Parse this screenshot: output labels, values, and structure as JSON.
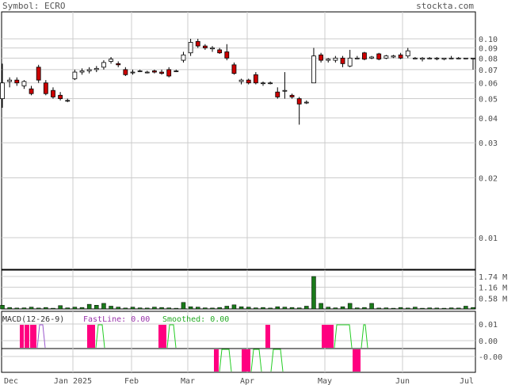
{
  "header": {
    "symbol_label": "Symbol: ECRO",
    "site": "stockta.com"
  },
  "chart_data": {
    "type": "candlestick",
    "x_ticks": [
      "Dec",
      "Jan 2025",
      "Feb",
      "Mar",
      "Apr",
      "May",
      "Jun",
      "Jul"
    ],
    "price_axis": {
      "scale": "log",
      "ticks": [
        "0.10",
        "0.09",
        "0.08",
        "0.07",
        "0.06",
        "0.05",
        "0.04",
        "0.03",
        "0.02",
        "0.01"
      ]
    },
    "volume_axis": {
      "ticks": [
        "1.74 M",
        "1.16 M",
        "0.58 M"
      ]
    },
    "macd": {
      "label": "MACD(12-26-9)",
      "fastline": "FastLine: 0.00",
      "smoothed": "Smoothed: 0.00",
      "ticks": [
        "0.01",
        "0.00",
        "-0.00"
      ]
    },
    "colors": {
      "up": "#ffffff",
      "down": "#cc0000",
      "volume": "#1a7a1a",
      "macd_fast": "#ff0080",
      "macd_smooth": "#22cc22",
      "macd_mixed": "#9955cc"
    },
    "candles": [
      {
        "o": 0.05,
        "h": 0.075,
        "l": 0.045,
        "c": 0.06
      },
      {
        "o": 0.061,
        "h": 0.064,
        "l": 0.057,
        "c": 0.062
      },
      {
        "o": 0.062,
        "h": 0.064,
        "l": 0.058,
        "c": 0.06
      },
      {
        "o": 0.058,
        "h": 0.062,
        "l": 0.056,
        "c": 0.061
      },
      {
        "o": 0.056,
        "h": 0.058,
        "l": 0.052,
        "c": 0.053
      },
      {
        "o": 0.072,
        "h": 0.074,
        "l": 0.06,
        "c": 0.062
      },
      {
        "o": 0.06,
        "h": 0.062,
        "l": 0.052,
        "c": 0.053
      },
      {
        "o": 0.055,
        "h": 0.057,
        "l": 0.05,
        "c": 0.051
      },
      {
        "o": 0.052,
        "h": 0.054,
        "l": 0.049,
        "c": 0.05
      },
      {
        "o": 0.049,
        "h": 0.05,
        "l": 0.048,
        "c": 0.049
      },
      {
        "o": 0.063,
        "h": 0.07,
        "l": 0.062,
        "c": 0.068
      },
      {
        "o": 0.068,
        "h": 0.071,
        "l": 0.066,
        "c": 0.069
      },
      {
        "o": 0.069,
        "h": 0.072,
        "l": 0.067,
        "c": 0.07
      },
      {
        "o": 0.07,
        "h": 0.073,
        "l": 0.068,
        "c": 0.071
      },
      {
        "o": 0.072,
        "h": 0.078,
        "l": 0.07,
        "c": 0.076
      },
      {
        "o": 0.077,
        "h": 0.081,
        "l": 0.075,
        "c": 0.079
      },
      {
        "o": 0.075,
        "h": 0.077,
        "l": 0.072,
        "c": 0.074
      },
      {
        "o": 0.07,
        "h": 0.072,
        "l": 0.065,
        "c": 0.066
      },
      {
        "o": 0.068,
        "h": 0.07,
        "l": 0.066,
        "c": 0.068
      },
      {
        "o": 0.069,
        "h": 0.07,
        "l": 0.068,
        "c": 0.069
      },
      {
        "o": 0.068,
        "h": 0.069,
        "l": 0.067,
        "c": 0.068
      },
      {
        "o": 0.069,
        "h": 0.07,
        "l": 0.067,
        "c": 0.068
      },
      {
        "o": 0.068,
        "h": 0.07,
        "l": 0.066,
        "c": 0.067
      },
      {
        "o": 0.07,
        "h": 0.072,
        "l": 0.064,
        "c": 0.065
      },
      {
        "o": 0.069,
        "h": 0.07,
        "l": 0.068,
        "c": 0.069
      },
      {
        "o": 0.078,
        "h": 0.086,
        "l": 0.076,
        "c": 0.083
      },
      {
        "o": 0.085,
        "h": 0.1,
        "l": 0.082,
        "c": 0.096
      },
      {
        "o": 0.097,
        "h": 0.1,
        "l": 0.09,
        "c": 0.092
      },
      {
        "o": 0.092,
        "h": 0.094,
        "l": 0.088,
        "c": 0.09
      },
      {
        "o": 0.089,
        "h": 0.092,
        "l": 0.086,
        "c": 0.09
      },
      {
        "o": 0.088,
        "h": 0.09,
        "l": 0.084,
        "c": 0.085
      },
      {
        "o": 0.086,
        "h": 0.094,
        "l": 0.078,
        "c": 0.08
      },
      {
        "o": 0.074,
        "h": 0.076,
        "l": 0.066,
        "c": 0.067
      },
      {
        "o": 0.061,
        "h": 0.063,
        "l": 0.059,
        "c": 0.062
      },
      {
        "o": 0.062,
        "h": 0.063,
        "l": 0.059,
        "c": 0.06
      },
      {
        "o": 0.066,
        "h": 0.068,
        "l": 0.059,
        "c": 0.06
      },
      {
        "o": 0.06,
        "h": 0.061,
        "l": 0.058,
        "c": 0.06
      },
      {
        "o": 0.06,
        "h": 0.061,
        "l": 0.059,
        "c": 0.06
      },
      {
        "o": 0.054,
        "h": 0.057,
        "l": 0.05,
        "c": 0.051
      },
      {
        "o": 0.055,
        "h": 0.068,
        "l": 0.05,
        "c": 0.055
      },
      {
        "o": 0.052,
        "h": 0.053,
        "l": 0.05,
        "c": 0.051
      },
      {
        "o": 0.05,
        "h": 0.051,
        "l": 0.037,
        "c": 0.047
      },
      {
        "o": 0.048,
        "h": 0.049,
        "l": 0.047,
        "c": 0.048
      },
      {
        "o": 0.06,
        "h": 0.09,
        "l": 0.06,
        "c": 0.082
      },
      {
        "o": 0.083,
        "h": 0.085,
        "l": 0.076,
        "c": 0.078
      },
      {
        "o": 0.078,
        "h": 0.08,
        "l": 0.076,
        "c": 0.079
      },
      {
        "o": 0.078,
        "h": 0.082,
        "l": 0.076,
        "c": 0.08
      },
      {
        "o": 0.08,
        "h": 0.082,
        "l": 0.072,
        "c": 0.075
      },
      {
        "o": 0.073,
        "h": 0.088,
        "l": 0.072,
        "c": 0.08
      },
      {
        "o": 0.08,
        "h": 0.082,
        "l": 0.079,
        "c": 0.08
      },
      {
        "o": 0.085,
        "h": 0.086,
        "l": 0.078,
        "c": 0.079
      },
      {
        "o": 0.08,
        "h": 0.082,
        "l": 0.079,
        "c": 0.081
      },
      {
        "o": 0.084,
        "h": 0.085,
        "l": 0.078,
        "c": 0.079
      },
      {
        "o": 0.08,
        "h": 0.083,
        "l": 0.079,
        "c": 0.082
      },
      {
        "o": 0.081,
        "h": 0.083,
        "l": 0.08,
        "c": 0.082
      },
      {
        "o": 0.083,
        "h": 0.085,
        "l": 0.079,
        "c": 0.08
      },
      {
        "o": 0.082,
        "h": 0.09,
        "l": 0.08,
        "c": 0.087
      },
      {
        "o": 0.08,
        "h": 0.081,
        "l": 0.079,
        "c": 0.08
      },
      {
        "o": 0.079,
        "h": 0.081,
        "l": 0.077,
        "c": 0.08
      },
      {
        "o": 0.08,
        "h": 0.081,
        "l": 0.079,
        "c": 0.08
      },
      {
        "o": 0.08,
        "h": 0.081,
        "l": 0.078,
        "c": 0.08
      },
      {
        "o": 0.079,
        "h": 0.08,
        "l": 0.078,
        "c": 0.08
      },
      {
        "o": 0.08,
        "h": 0.082,
        "l": 0.079,
        "c": 0.08
      },
      {
        "o": 0.08,
        "h": 0.081,
        "l": 0.079,
        "c": 0.08
      },
      {
        "o": 0.08,
        "h": 0.08,
        "l": 0.079,
        "c": 0.08
      },
      {
        "o": 0.08,
        "h": 0.08,
        "l": 0.07,
        "c": 0.08
      }
    ],
    "volumes": [
      0.2,
      0.08,
      0.05,
      0.06,
      0.1,
      0.05,
      0.08,
      0.04,
      0.18,
      0.06,
      0.1,
      0.08,
      0.25,
      0.2,
      0.3,
      0.15,
      0.1,
      0.05,
      0.1,
      0.06,
      0.05,
      0.1,
      0.08,
      0.06,
      0.04,
      0.35,
      0.12,
      0.1,
      0.06,
      0.05,
      0.08,
      0.15,
      0.22,
      0.12,
      0.1,
      0.06,
      0.08,
      0.05,
      0.12,
      0.1,
      0.08,
      0.06,
      0.15,
      1.74,
      0.3,
      0.1,
      0.06,
      0.12,
      0.3,
      0.06,
      0.08,
      0.3,
      0.05,
      0.06,
      0.04,
      0.08,
      0.05,
      0.1,
      0.04,
      0.06,
      0.05,
      0.04,
      0.06,
      0.05,
      0.15,
      0.08
    ],
    "macd_hist": [
      {
        "from": 25,
        "to": 30,
        "type": "fast",
        "pos": "above"
      },
      {
        "from": 31,
        "to": 37,
        "type": "fast",
        "pos": "above"
      },
      {
        "from": 38,
        "to": 46,
        "type": "fast",
        "pos": "above"
      },
      {
        "from": 47,
        "to": 57,
        "type": "mixed",
        "pos": "above"
      },
      {
        "from": 110,
        "to": 120,
        "type": "fast",
        "pos": "above"
      },
      {
        "from": 121,
        "to": 132,
        "type": "smooth",
        "pos": "above"
      },
      {
        "from": 200,
        "to": 210,
        "type": "fast",
        "pos": "above"
      },
      {
        "from": 211,
        "to": 222,
        "type": "smooth",
        "pos": "above"
      },
      {
        "from": 270,
        "to": 276,
        "type": "fast",
        "pos": "below"
      },
      {
        "from": 277,
        "to": 292,
        "type": "smooth",
        "pos": "below"
      },
      {
        "from": 305,
        "to": 316,
        "type": "fast",
        "pos": "below"
      },
      {
        "from": 317,
        "to": 330,
        "type": "smooth",
        "pos": "below"
      },
      {
        "from": 335,
        "to": 341,
        "type": "fast",
        "pos": "above"
      },
      {
        "from": 342,
        "to": 357,
        "type": "smooth",
        "pos": "below"
      },
      {
        "from": 406,
        "to": 421,
        "type": "fast",
        "pos": "above"
      },
      {
        "from": 422,
        "to": 444,
        "type": "smooth",
        "pos": "above"
      },
      {
        "from": 445,
        "to": 455,
        "type": "fast",
        "pos": "below"
      },
      {
        "from": 456,
        "to": 464,
        "type": "smooth",
        "pos": "above"
      }
    ]
  }
}
